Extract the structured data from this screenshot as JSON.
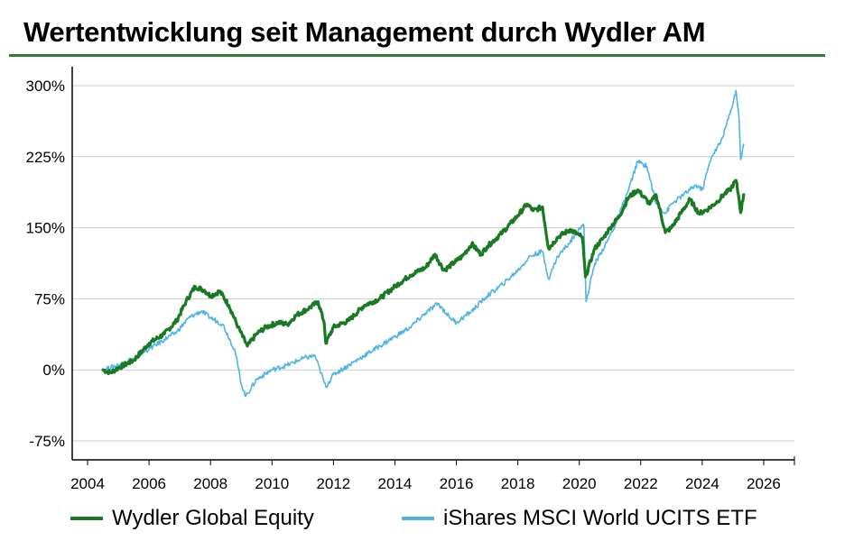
{
  "title": "Wertentwicklung seit Management durch Wydler AM",
  "colors": {
    "accent_rule": "#2e7d32",
    "wydler": "#1a7a24",
    "msci": "#4db4e4",
    "grid": "#cccccc",
    "axis": "#000000"
  },
  "chart_data": {
    "type": "line",
    "title": "Wertentwicklung seit Management durch Wydler AM",
    "xlabel": "",
    "ylabel": "",
    "xlim": [
      2003.5,
      2027
    ],
    "ylim": [
      -95,
      320
    ],
    "x_ticks": [
      2004,
      2006,
      2008,
      2010,
      2012,
      2014,
      2016,
      2018,
      2020,
      2022,
      2024,
      2026
    ],
    "y_ticks": [
      -75,
      0,
      75,
      150,
      225,
      300
    ],
    "y_tick_labels": [
      "-75%",
      "0%",
      "75%",
      "150%",
      "225%",
      "300%"
    ],
    "grid": true,
    "legend_position": "bottom",
    "series": [
      {
        "name": "Wydler Global Equity",
        "color": "#1a7a24",
        "points": [
          [
            2004.5,
            0
          ],
          [
            2004.75,
            -3
          ],
          [
            2005.0,
            2
          ],
          [
            2005.5,
            10
          ],
          [
            2006.0,
            28
          ],
          [
            2006.5,
            38
          ],
          [
            2006.9,
            52
          ],
          [
            2007.2,
            72
          ],
          [
            2007.5,
            88
          ],
          [
            2007.8,
            84
          ],
          [
            2008.0,
            78
          ],
          [
            2008.3,
            83
          ],
          [
            2008.6,
            68
          ],
          [
            2008.9,
            45
          ],
          [
            2009.2,
            25
          ],
          [
            2009.5,
            38
          ],
          [
            2009.8,
            45
          ],
          [
            2010.2,
            50
          ],
          [
            2010.5,
            48
          ],
          [
            2010.8,
            58
          ],
          [
            2011.2,
            65
          ],
          [
            2011.5,
            72
          ],
          [
            2011.7,
            50
          ],
          [
            2011.75,
            28
          ],
          [
            2012.0,
            45
          ],
          [
            2012.5,
            52
          ],
          [
            2013.0,
            68
          ],
          [
            2013.5,
            75
          ],
          [
            2014.0,
            88
          ],
          [
            2014.5,
            100
          ],
          [
            2015.0,
            108
          ],
          [
            2015.3,
            122
          ],
          [
            2015.6,
            105
          ],
          [
            2016.0,
            115
          ],
          [
            2016.2,
            120
          ],
          [
            2016.5,
            133
          ],
          [
            2016.8,
            122
          ],
          [
            2017.0,
            130
          ],
          [
            2017.5,
            145
          ],
          [
            2018.0,
            163
          ],
          [
            2018.3,
            175
          ],
          [
            2018.5,
            168
          ],
          [
            2018.8,
            172
          ],
          [
            2019.0,
            128
          ],
          [
            2019.3,
            140
          ],
          [
            2019.7,
            148
          ],
          [
            2020.0,
            142
          ],
          [
            2020.1,
            140
          ],
          [
            2020.2,
            98
          ],
          [
            2020.5,
            128
          ],
          [
            2020.8,
            140
          ],
          [
            2021.0,
            150
          ],
          [
            2021.3,
            162
          ],
          [
            2021.6,
            182
          ],
          [
            2021.9,
            190
          ],
          [
            2022.3,
            175
          ],
          [
            2022.5,
            185
          ],
          [
            2022.8,
            145
          ],
          [
            2023.0,
            150
          ],
          [
            2023.3,
            165
          ],
          [
            2023.6,
            180
          ],
          [
            2023.9,
            165
          ],
          [
            2024.2,
            170
          ],
          [
            2024.5,
            178
          ],
          [
            2024.7,
            185
          ],
          [
            2024.9,
            190
          ],
          [
            2025.1,
            200
          ],
          [
            2025.2,
            180
          ],
          [
            2025.25,
            166
          ],
          [
            2025.35,
            185
          ]
        ]
      },
      {
        "name": "iShares MSCI World UCITS ETF",
        "color": "#4db4e4",
        "points": [
          [
            2004.5,
            0
          ],
          [
            2005.0,
            5
          ],
          [
            2005.5,
            12
          ],
          [
            2006.0,
            22
          ],
          [
            2006.5,
            32
          ],
          [
            2006.9,
            40
          ],
          [
            2007.3,
            55
          ],
          [
            2007.7,
            62
          ],
          [
            2008.0,
            55
          ],
          [
            2008.4,
            48
          ],
          [
            2008.8,
            20
          ],
          [
            2009.0,
            -15
          ],
          [
            2009.15,
            -28
          ],
          [
            2009.5,
            -10
          ],
          [
            2010.0,
            0
          ],
          [
            2010.5,
            5
          ],
          [
            2011.0,
            12
          ],
          [
            2011.4,
            15
          ],
          [
            2011.75,
            -18
          ],
          [
            2012.0,
            -5
          ],
          [
            2012.5,
            5
          ],
          [
            2013.0,
            15
          ],
          [
            2013.5,
            25
          ],
          [
            2014.0,
            35
          ],
          [
            2014.5,
            45
          ],
          [
            2015.0,
            60
          ],
          [
            2015.4,
            70
          ],
          [
            2015.8,
            55
          ],
          [
            2016.0,
            50
          ],
          [
            2016.5,
            62
          ],
          [
            2017.0,
            78
          ],
          [
            2017.5,
            90
          ],
          [
            2018.0,
            105
          ],
          [
            2018.4,
            120
          ],
          [
            2018.8,
            125
          ],
          [
            2019.0,
            96
          ],
          [
            2019.3,
            120
          ],
          [
            2019.7,
            135
          ],
          [
            2020.0,
            150
          ],
          [
            2020.15,
            152
          ],
          [
            2020.22,
            72
          ],
          [
            2020.5,
            112
          ],
          [
            2020.9,
            135
          ],
          [
            2021.2,
            155
          ],
          [
            2021.6,
            190
          ],
          [
            2021.9,
            220
          ],
          [
            2022.2,
            215
          ],
          [
            2022.5,
            175
          ],
          [
            2022.8,
            165
          ],
          [
            2023.0,
            175
          ],
          [
            2023.4,
            185
          ],
          [
            2023.8,
            195
          ],
          [
            2024.0,
            190
          ],
          [
            2024.3,
            225
          ],
          [
            2024.6,
            240
          ],
          [
            2024.9,
            270
          ],
          [
            2025.1,
            295
          ],
          [
            2025.2,
            265
          ],
          [
            2025.25,
            222
          ],
          [
            2025.35,
            238
          ]
        ]
      }
    ]
  }
}
